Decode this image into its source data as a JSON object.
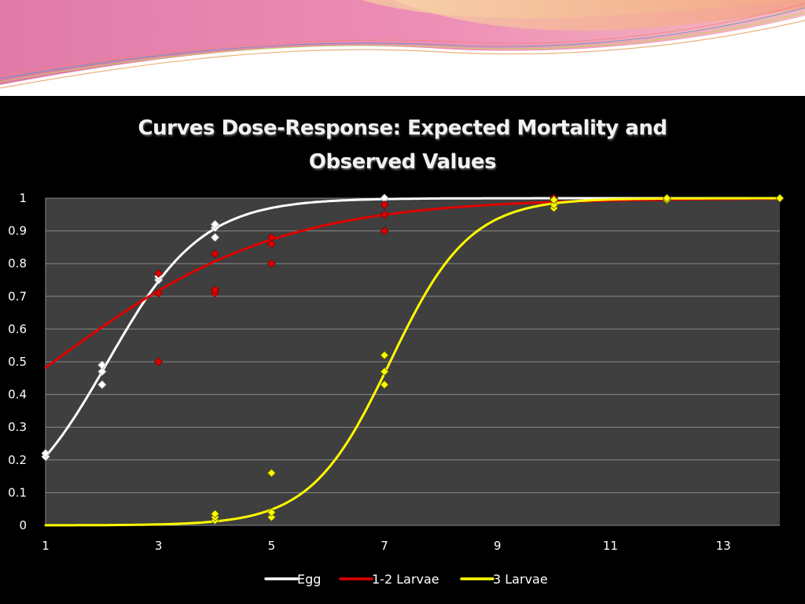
{
  "chart_data": {
    "type": "scatter",
    "title": "Curves Dose-Response: Expected Mortality and Observed Values",
    "title_lines": [
      "Curves Dose-Response: Expected Mortality and",
      "Observed Values"
    ],
    "xlim": [
      1,
      14
    ],
    "ylim": [
      0,
      1
    ],
    "x_ticks": [
      "1",
      "3",
      "5",
      "7",
      "9",
      "11",
      "13"
    ],
    "y_ticks": [
      "0",
      "0.1",
      "0.2",
      "0.3",
      "0.4",
      "0.5",
      "0.6",
      "0.7",
      "0.8",
      "0.9",
      "1"
    ],
    "grid": true,
    "legend_position": "bottom",
    "series": [
      {
        "name": "Egg",
        "color": "#ffffff",
        "fit_curve": {
          "model": "logistic",
          "midpoint": 2.1,
          "slope": 1.2
        },
        "observed": [
          {
            "x": 1,
            "y": 0.21
          },
          {
            "x": 1,
            "y": 0.22
          },
          {
            "x": 2,
            "y": 0.43
          },
          {
            "x": 2,
            "y": 0.47
          },
          {
            "x": 2,
            "y": 0.49
          },
          {
            "x": 3,
            "y": 0.75
          },
          {
            "x": 3,
            "y": 0.76
          },
          {
            "x": 4,
            "y": 0.88
          },
          {
            "x": 4,
            "y": 0.91
          },
          {
            "x": 4,
            "y": 0.92
          },
          {
            "x": 7,
            "y": 1.0
          },
          {
            "x": 7,
            "y": 1.0
          }
        ]
      },
      {
        "name": "1-2 Larvae",
        "color": "#e00000",
        "fit_curve": {
          "model": "logistic",
          "midpoint": 1.14,
          "slope": 0.5
        },
        "observed": [
          {
            "x": 3,
            "y": 0.5
          },
          {
            "x": 3,
            "y": 0.71
          },
          {
            "x": 3,
            "y": 0.77
          },
          {
            "x": 4,
            "y": 0.71
          },
          {
            "x": 4,
            "y": 0.72
          },
          {
            "x": 4,
            "y": 0.83
          },
          {
            "x": 5,
            "y": 0.8
          },
          {
            "x": 5,
            "y": 0.86
          },
          {
            "x": 5,
            "y": 0.88
          },
          {
            "x": 7,
            "y": 0.9
          },
          {
            "x": 7,
            "y": 0.95
          },
          {
            "x": 7,
            "y": 0.98
          },
          {
            "x": 10,
            "y": 1.0
          }
        ]
      },
      {
        "name": "3 Larvae",
        "color": "#ffff00",
        "fit_curve": {
          "model": "logistic",
          "midpoint": 7.1,
          "slope": 1.42
        },
        "observed": [
          {
            "x": 4,
            "y": 0.015
          },
          {
            "x": 4,
            "y": 0.025
          },
          {
            "x": 4,
            "y": 0.035
          },
          {
            "x": 5,
            "y": 0.025
          },
          {
            "x": 5,
            "y": 0.04
          },
          {
            "x": 5,
            "y": 0.16
          },
          {
            "x": 7,
            "y": 0.43
          },
          {
            "x": 7,
            "y": 0.47
          },
          {
            "x": 7,
            "y": 0.52
          },
          {
            "x": 10,
            "y": 0.97
          },
          {
            "x": 10,
            "y": 0.98
          },
          {
            "x": 10,
            "y": 0.995
          },
          {
            "x": 12,
            "y": 0.995
          },
          {
            "x": 12,
            "y": 1.0
          },
          {
            "x": 14,
            "y": 1.0
          }
        ]
      }
    ]
  }
}
